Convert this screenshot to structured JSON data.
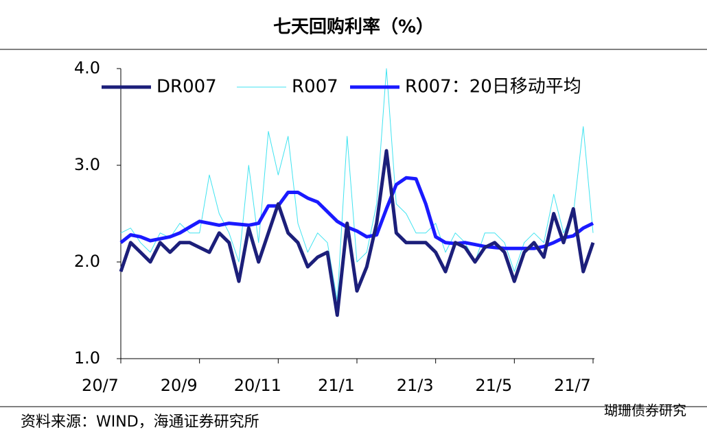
{
  "chart_data": {
    "type": "line",
    "title": "七天回购利率（%）",
    "categories": [
      "20/7",
      null,
      null,
      null,
      null,
      null,
      null,
      null,
      "20/9",
      null,
      null,
      null,
      null,
      null,
      null,
      null,
      "20/11",
      null,
      null,
      null,
      null,
      null,
      null,
      null,
      "21/1",
      null,
      null,
      null,
      null,
      null,
      null,
      null,
      "21/3",
      null,
      null,
      null,
      null,
      null,
      null,
      null,
      "21/5",
      null,
      null,
      null,
      null,
      null,
      null,
      null,
      "21/7"
    ],
    "series": [
      {
        "name": "DR007",
        "color": "#1c1f7a",
        "width": 5,
        "values": [
          1.9,
          2.2,
          2.1,
          2.0,
          2.2,
          2.1,
          2.2,
          2.2,
          2.15,
          2.1,
          2.3,
          2.2,
          1.8,
          2.35,
          2.0,
          2.3,
          2.6,
          2.3,
          2.2,
          1.95,
          2.05,
          2.1,
          1.45,
          2.4,
          1.7,
          1.95,
          2.4,
          3.15,
          2.3,
          2.2,
          2.2,
          2.2,
          2.1,
          1.9,
          2.2,
          2.15,
          2.0,
          2.15,
          2.2,
          2.1,
          1.8,
          2.1,
          2.2,
          2.05,
          2.5,
          2.2,
          2.55,
          1.9,
          2.2
        ]
      },
      {
        "name": "R007",
        "color": "#3fe3f0",
        "width": 1,
        "values": [
          2.3,
          2.35,
          2.2,
          2.1,
          2.3,
          2.25,
          2.4,
          2.3,
          2.3,
          2.9,
          2.5,
          2.3,
          2.0,
          3.0,
          2.2,
          3.35,
          2.9,
          3.3,
          2.4,
          2.1,
          2.3,
          2.2,
          1.6,
          3.3,
          2.0,
          2.1,
          2.6,
          4.0,
          2.6,
          2.5,
          2.3,
          2.3,
          2.4,
          2.1,
          2.3,
          2.2,
          2.0,
          2.3,
          2.3,
          2.2,
          1.9,
          2.2,
          2.3,
          2.2,
          2.7,
          2.3,
          2.5,
          3.4,
          2.3
        ]
      },
      {
        "name": "R007：20日移动平均",
        "color": "#1a1aff",
        "width": 5,
        "values": [
          2.2,
          2.28,
          2.26,
          2.22,
          2.24,
          2.26,
          2.3,
          2.36,
          2.42,
          2.4,
          2.38,
          2.4,
          2.39,
          2.38,
          2.4,
          2.58,
          2.58,
          2.72,
          2.72,
          2.66,
          2.62,
          2.52,
          2.42,
          2.36,
          2.32,
          2.26,
          2.28,
          2.55,
          2.8,
          2.87,
          2.86,
          2.6,
          2.26,
          2.2,
          2.19,
          2.2,
          2.18,
          2.16,
          2.15,
          2.14,
          2.14,
          2.14,
          2.14,
          2.16,
          2.2,
          2.25,
          2.27,
          2.35,
          2.4
        ]
      }
    ],
    "ylim": [
      1.0,
      4.0
    ],
    "yticks": [
      {
        "value": 1,
        "label": "1.0"
      },
      {
        "value": 2,
        "label": "2.0"
      },
      {
        "value": 3,
        "label": "3.0"
      },
      {
        "value": 4,
        "label": "4.0"
      }
    ],
    "source": "资料来源：WIND，海通证券研究所",
    "watermark": "瑚珊债券研究"
  }
}
